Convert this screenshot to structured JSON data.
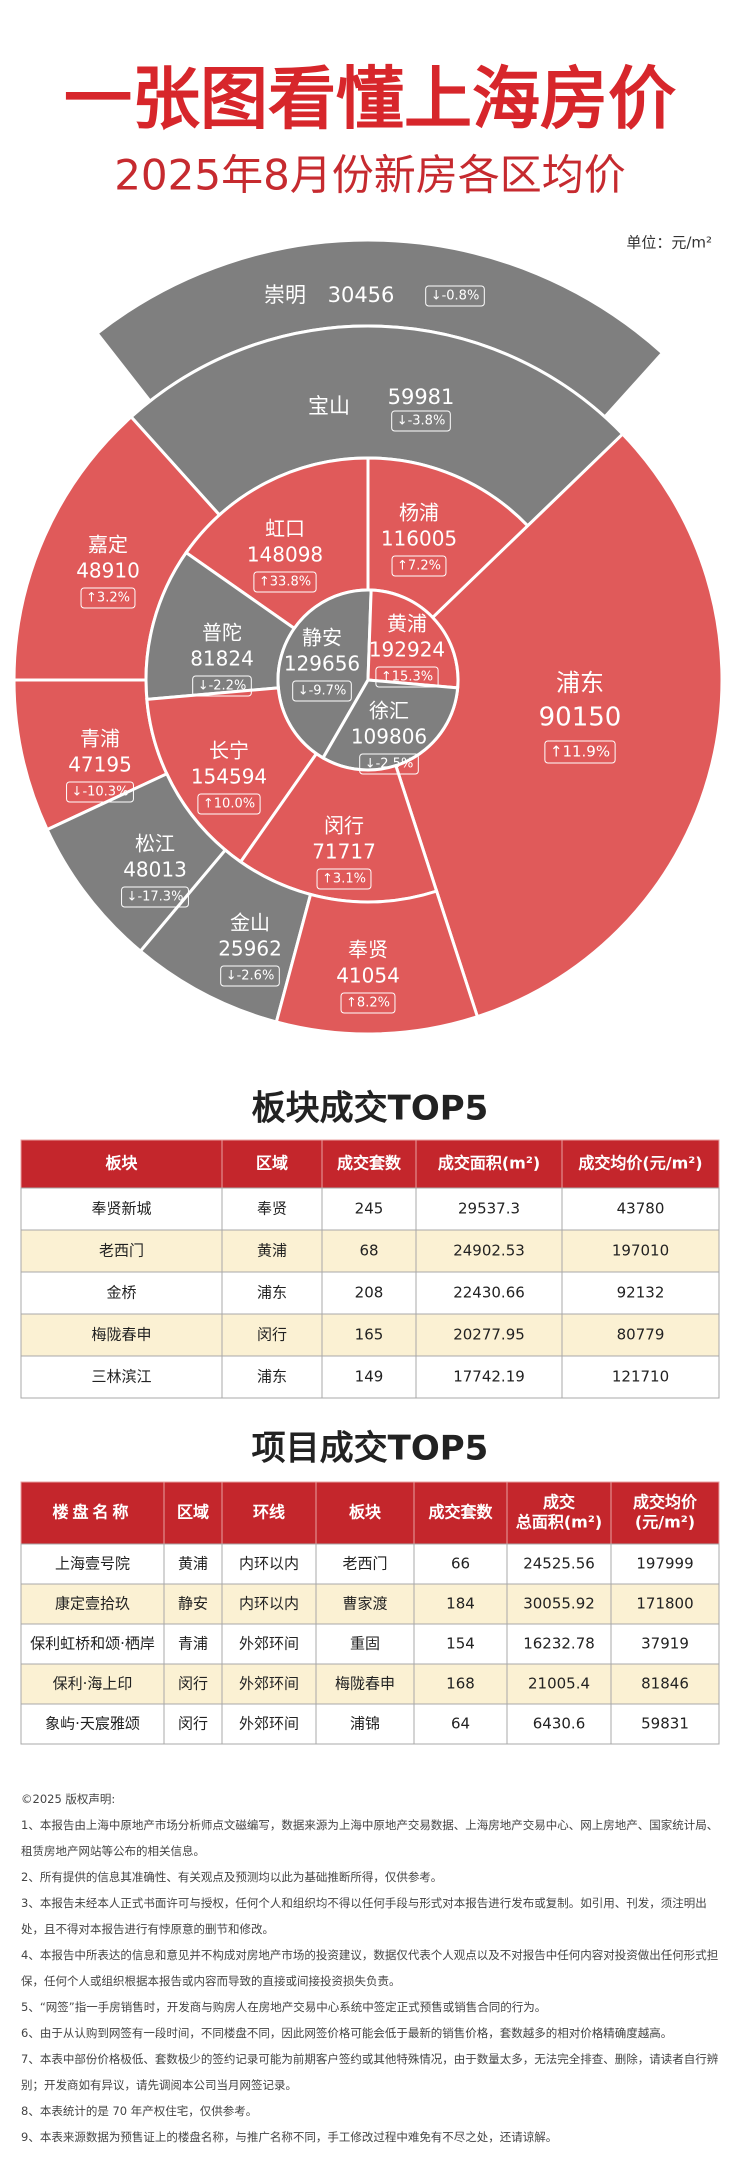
{
  "header": {
    "title": "一张图看懂上海房价",
    "subtitle": "2025年8月份新房各区均价",
    "unit": "单位：元/m²"
  },
  "districts": [
    {
      "name": "崇明",
      "price": 30456,
      "change": "↓-0.8%",
      "color": "#7f7f7f"
    },
    {
      "name": "宝山",
      "price": 59981,
      "change": "↓-3.8%",
      "color": "#7f7f7f"
    },
    {
      "name": "嘉定",
      "price": 48910,
      "change": "↑3.2%",
      "color": "#e05a5a"
    },
    {
      "name": "虹口",
      "price": 148098,
      "change": "↑33.8%",
      "color": "#e05a5a"
    },
    {
      "name": "杨浦",
      "price": 116005,
      "change": "↑7.2%",
      "color": "#e05a5a"
    },
    {
      "name": "普陀",
      "price": 81824,
      "change": "↓-2.2%",
      "color": "#7f7f7f"
    },
    {
      "name": "静安",
      "price": 129656,
      "change": "↓-9.7%",
      "color": "#7f7f7f"
    },
    {
      "name": "黄浦",
      "price": 192924,
      "change": "↑15.3%",
      "color": "#e05a5a"
    },
    {
      "name": "浦东",
      "price": 90150,
      "change": "↑11.9%",
      "color": "#e05a5a"
    },
    {
      "name": "青浦",
      "price": 47195,
      "change": "↓-10.3%",
      "color": "#e05a5a"
    },
    {
      "name": "长宁",
      "price": 154594,
      "change": "↑10.0%",
      "color": "#e05a5a"
    },
    {
      "name": "徐汇",
      "price": 109806,
      "change": "↓-2.5%",
      "color": "#7f7f7f"
    },
    {
      "name": "松江",
      "price": 48013,
      "change": "↓-17.3%",
      "color": "#7f7f7f"
    },
    {
      "name": "闵行",
      "price": 71717,
      "change": "↑3.1%",
      "color": "#e05a5a"
    },
    {
      "name": "金山",
      "price": 25962,
      "change": "↓-2.6%",
      "color": "#7f7f7f"
    },
    {
      "name": "奉贤",
      "price": 41054,
      "change": "↑8.2%",
      "color": "#e05a5a"
    }
  ],
  "table1": {
    "title": "板块成交TOP5",
    "headers": [
      [
        "板块"
      ],
      [
        "区域"
      ],
      [
        "成交套数"
      ],
      [
        "成交面积(m²)"
      ],
      [
        "成交均价(元/m²)"
      ]
    ],
    "rows": [
      [
        "奉贤新城",
        "奉贤",
        245,
        29537.3,
        43780
      ],
      [
        "老西门",
        "黄浦",
        68,
        24902.53,
        197010
      ],
      [
        "金桥",
        "浦东",
        208,
        22430.66,
        92132
      ],
      [
        "梅陇春申",
        "闵行",
        165,
        20277.95,
        80779
      ],
      [
        "三林滨江",
        "浦东",
        149,
        17742.19,
        121710
      ]
    ]
  },
  "table2": {
    "title": "项目成交TOP5",
    "headers": [
      [
        "楼盘名称"
      ],
      [
        "区域"
      ],
      [
        "环线"
      ],
      [
        "板块"
      ],
      [
        "成交套数"
      ],
      [
        "成交",
        "总面积(m²)"
      ],
      [
        "成交均价",
        "(元/m²)"
      ]
    ],
    "rows": [
      [
        "上海壹号院",
        "黄浦",
        "内环以内",
        "老西门",
        66,
        24525.56,
        197999
      ],
      [
        "康定壹拾玖",
        "静安",
        "内环以内",
        "曹家渡",
        184,
        30055.92,
        171800
      ],
      [
        "保利虹桥和颂·栖岸",
        "青浦",
        "外郊环间",
        "重固",
        154,
        16232.78,
        37919
      ],
      [
        "保利·海上印",
        "闵行",
        "外郊环间",
        "梅陇春申",
        168,
        21005.4,
        81846
      ],
      [
        "象屿·天宸雅颂",
        "闵行",
        "外郊环间",
        "浦锦",
        64,
        6430.6,
        59831
      ]
    ]
  },
  "notes": [
    "©2025 版权声明:",
    "1、本报告由上海中原地产市场分析师点文磁编写，数据来源为上海中原地产交易数据、上海房地产交易中心、网上房地产、国家统计局、租赁房地产网站等公布的相关信息。",
    "2、所有提供的信息其准确性、有关观点及预测均以此为基础推断所得，仅供参考。",
    "3、本报告未经本人正式书面许可与授权，任何个人和组织均不得以任何手段与形式对本报告进行发布或复制。如引用、刊发，须注明出处，且不得对本报告进行有悖原意的删节和修改。",
    "4、本报告中所表达的信息和意见并不构成对房地产市场的投资建议，数据仅代表个人观点以及不对报告中任何内容对投资做出任何形式担保，任何个人或组织根据本报告或内容而导致的直接或间接投资损失负责。",
    "5、“网签”指一手房销售时，开发商与购房人在房地产交易中心系统中签定正式预售或销售合同的行为。",
    "6、由于从认购到网签有一段时间，不同楼盘不同，因此网签价格可能会低于最新的销售价格，套数越多的相对价格精确度越高。",
    "7、本表中部份价格极低、套数极少的签约记录可能为前期客户签约或其他特殊情况，由于数量太多，无法完全排查、删除，请读者自行辨别；开发商如有异议，请先调阅本公司当月网签记录。",
    "8、本表统计的是 70 年产权住宅，仅供参考。",
    "9、本表来源数据为预售证上的楼盘名称，与推广名称不同，手工修改过程中难免有不尽之处，还请谅解。"
  ]
}
